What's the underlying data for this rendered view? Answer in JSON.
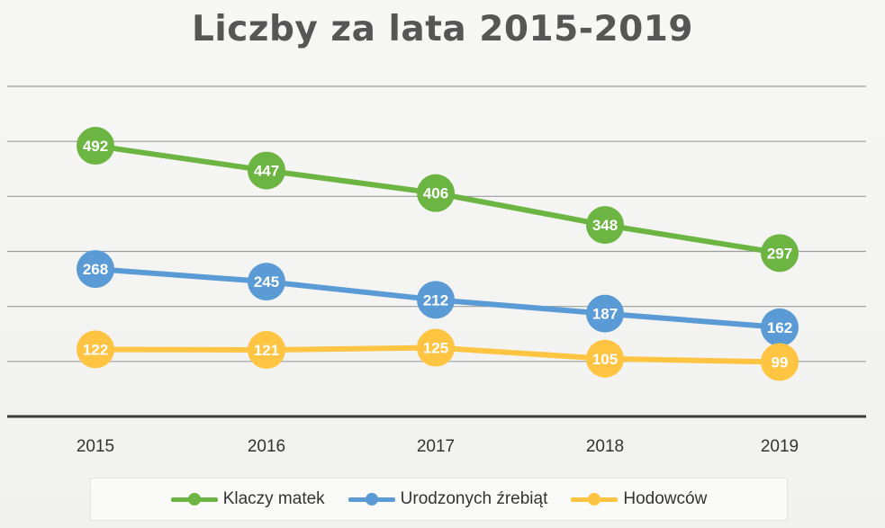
{
  "chart_data": {
    "type": "line",
    "title": "Liczby za lata 2015-2019",
    "x": [
      "2015",
      "2016",
      "2017",
      "2018",
      "2019"
    ],
    "series": [
      {
        "name": "Klaczy matek",
        "color": "#6db543",
        "values": [
          492,
          447,
          406,
          348,
          297
        ]
      },
      {
        "name": "Urodzonych źrebiąt",
        "color": "#5b9bd5",
        "values": [
          268,
          245,
          212,
          187,
          162
        ]
      },
      {
        "name": "Hodowców",
        "color": "#ffc441",
        "values": [
          122,
          121,
          125,
          105,
          99
        ]
      }
    ],
    "ylim": [
      0,
      600
    ],
    "grid": true,
    "legend_position": "bottom",
    "data_labels": true
  }
}
